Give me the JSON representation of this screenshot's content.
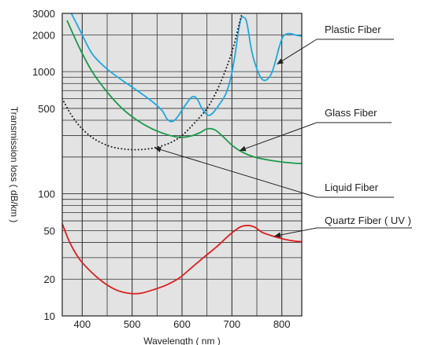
{
  "chart_data": {
    "type": "line",
    "xlabel": "Wavelength ( nm )",
    "ylabel": "Transmission loss ( dB/km )",
    "xlim": [
      360,
      840
    ],
    "ylim": [
      10,
      3000
    ],
    "yscale": "log",
    "x_ticks": [
      400,
      500,
      600,
      700,
      800
    ],
    "y_ticks": [
      10,
      20,
      50,
      100,
      500,
      1000,
      2000,
      3000
    ],
    "grid": true,
    "series": [
      {
        "name": "Plastic Fiber",
        "color": "#1ea8e0",
        "style": "solid",
        "points": [
          [
            370,
            3500
          ],
          [
            395,
            2200
          ],
          [
            420,
            1400
          ],
          [
            450,
            1050
          ],
          [
            480,
            850
          ],
          [
            510,
            700
          ],
          [
            540,
            570
          ],
          [
            560,
            480
          ],
          [
            570,
            410
          ],
          [
            580,
            390
          ],
          [
            590,
            420
          ],
          [
            605,
            520
          ],
          [
            620,
            620
          ],
          [
            630,
            600
          ],
          [
            640,
            500
          ],
          [
            652,
            440
          ],
          [
            662,
            460
          ],
          [
            675,
            540
          ],
          [
            688,
            660
          ],
          [
            698,
            900
          ],
          [
            706,
            1350
          ],
          [
            712,
            2000
          ],
          [
            718,
            2700
          ],
          [
            724,
            2780
          ],
          [
            730,
            2500
          ],
          [
            740,
            1450
          ],
          [
            750,
            1050
          ],
          [
            760,
            870
          ],
          [
            770,
            860
          ],
          [
            780,
            980
          ],
          [
            788,
            1250
          ],
          [
            795,
            1600
          ],
          [
            803,
            1950
          ],
          [
            815,
            2050
          ],
          [
            830,
            1980
          ],
          [
            840,
            1950
          ]
        ]
      },
      {
        "name": "Glass Fiber",
        "color": "#1a9a4a",
        "style": "solid",
        "points": [
          [
            370,
            2600
          ],
          [
            395,
            1550
          ],
          [
            420,
            1000
          ],
          [
            450,
            680
          ],
          [
            480,
            500
          ],
          [
            510,
            400
          ],
          [
            540,
            340
          ],
          [
            570,
            305
          ],
          [
            595,
            290
          ],
          [
            615,
            295
          ],
          [
            635,
            315
          ],
          [
            650,
            340
          ],
          [
            665,
            335
          ],
          [
            680,
            300
          ],
          [
            700,
            250
          ],
          [
            720,
            220
          ],
          [
            745,
            200
          ],
          [
            770,
            190
          ],
          [
            800,
            182
          ],
          [
            825,
            178
          ],
          [
            840,
            177
          ]
        ]
      },
      {
        "name": "Liquid Fiber",
        "color": "#222222",
        "style": "dotted",
        "points": [
          [
            360,
            600
          ],
          [
            380,
            430
          ],
          [
            400,
            340
          ],
          [
            425,
            280
          ],
          [
            455,
            245
          ],
          [
            485,
            232
          ],
          [
            515,
            230
          ],
          [
            545,
            238
          ],
          [
            575,
            260
          ],
          [
            600,
            300
          ],
          [
            625,
            380
          ],
          [
            650,
            500
          ],
          [
            670,
            700
          ],
          [
            690,
            1100
          ],
          [
            705,
            1700
          ],
          [
            715,
            2500
          ],
          [
            724,
            3400
          ]
        ]
      },
      {
        "name": "Quartz Fiber ( UV )",
        "color": "#dd1f1f",
        "style": "solid",
        "points": [
          [
            360,
            57
          ],
          [
            375,
            40
          ],
          [
            395,
            29
          ],
          [
            420,
            22.5
          ],
          [
            445,
            18.5
          ],
          [
            470,
            16.2
          ],
          [
            490,
            15.4
          ],
          [
            505,
            15.2
          ],
          [
            520,
            15.4
          ],
          [
            545,
            16.5
          ],
          [
            570,
            18
          ],
          [
            595,
            20.5
          ],
          [
            620,
            25
          ],
          [
            645,
            30.5
          ],
          [
            670,
            37
          ],
          [
            695,
            46
          ],
          [
            715,
            53
          ],
          [
            730,
            55
          ],
          [
            745,
            53.5
          ],
          [
            760,
            48.5
          ],
          [
            775,
            46
          ],
          [
            790,
            44
          ],
          [
            810,
            42
          ],
          [
            825,
            41
          ],
          [
            840,
            40.5
          ]
        ]
      }
    ],
    "annotations": [
      {
        "text": "Plastic Fiber",
        "series": "Plastic Fiber",
        "arrow_to": [
          790,
          1150
        ]
      },
      {
        "text": "Glass Fiber",
        "series": "Glass Fiber",
        "arrow_to": [
          715,
          225
        ]
      },
      {
        "text": "Liquid Fiber",
        "series": "Liquid Fiber",
        "arrow_to": [
          545,
          238
        ]
      },
      {
        "text": "Quartz Fiber ( UV )",
        "series": "Quartz Fiber ( UV )",
        "arrow_to": [
          785,
          45
        ]
      }
    ],
    "colors": {
      "plot_background": "#e3e3e3",
      "grid": "#333333"
    }
  }
}
